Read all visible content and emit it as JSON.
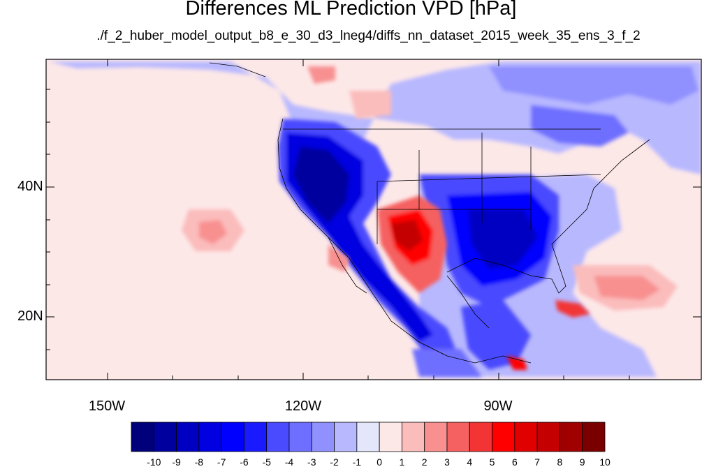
{
  "title": "Differences ML Prediction VPD [hPa]",
  "subtitle": "./f_2_huber_model_output_b8_e_30_d3_lneg4/diffs_nn_dataset_2015_week_35_ens_3_f_2",
  "axes": {
    "lat_labels": [
      "40N",
      "20N"
    ],
    "lon_labels": [
      "150W",
      "120W",
      "90W"
    ]
  },
  "colorbar": {
    "labels": [
      "-10",
      "-9",
      "-8",
      "-7",
      "-6",
      "-5",
      "-4",
      "-3",
      "-2",
      "-1",
      "0",
      "1",
      "2",
      "3",
      "4",
      "5",
      "6",
      "7",
      "8",
      "9",
      "10"
    ],
    "colors": [
      "#00007a",
      "#00009e",
      "#0000c2",
      "#0000e0",
      "#0000ff",
      "#1a1aff",
      "#4a4aff",
      "#6e6eff",
      "#9090ff",
      "#b8b8ff",
      "#e4e6fb",
      "#fde8e8",
      "#fbbcbc",
      "#f89090",
      "#f56060",
      "#f23434",
      "#ff0000",
      "#e00000",
      "#c40000",
      "#a00000",
      "#7a0000"
    ]
  },
  "map": {
    "lon_range": [
      -160,
      -60
    ],
    "lat_range": [
      11,
      59
    ],
    "background_color": "#fde8e8"
  }
}
